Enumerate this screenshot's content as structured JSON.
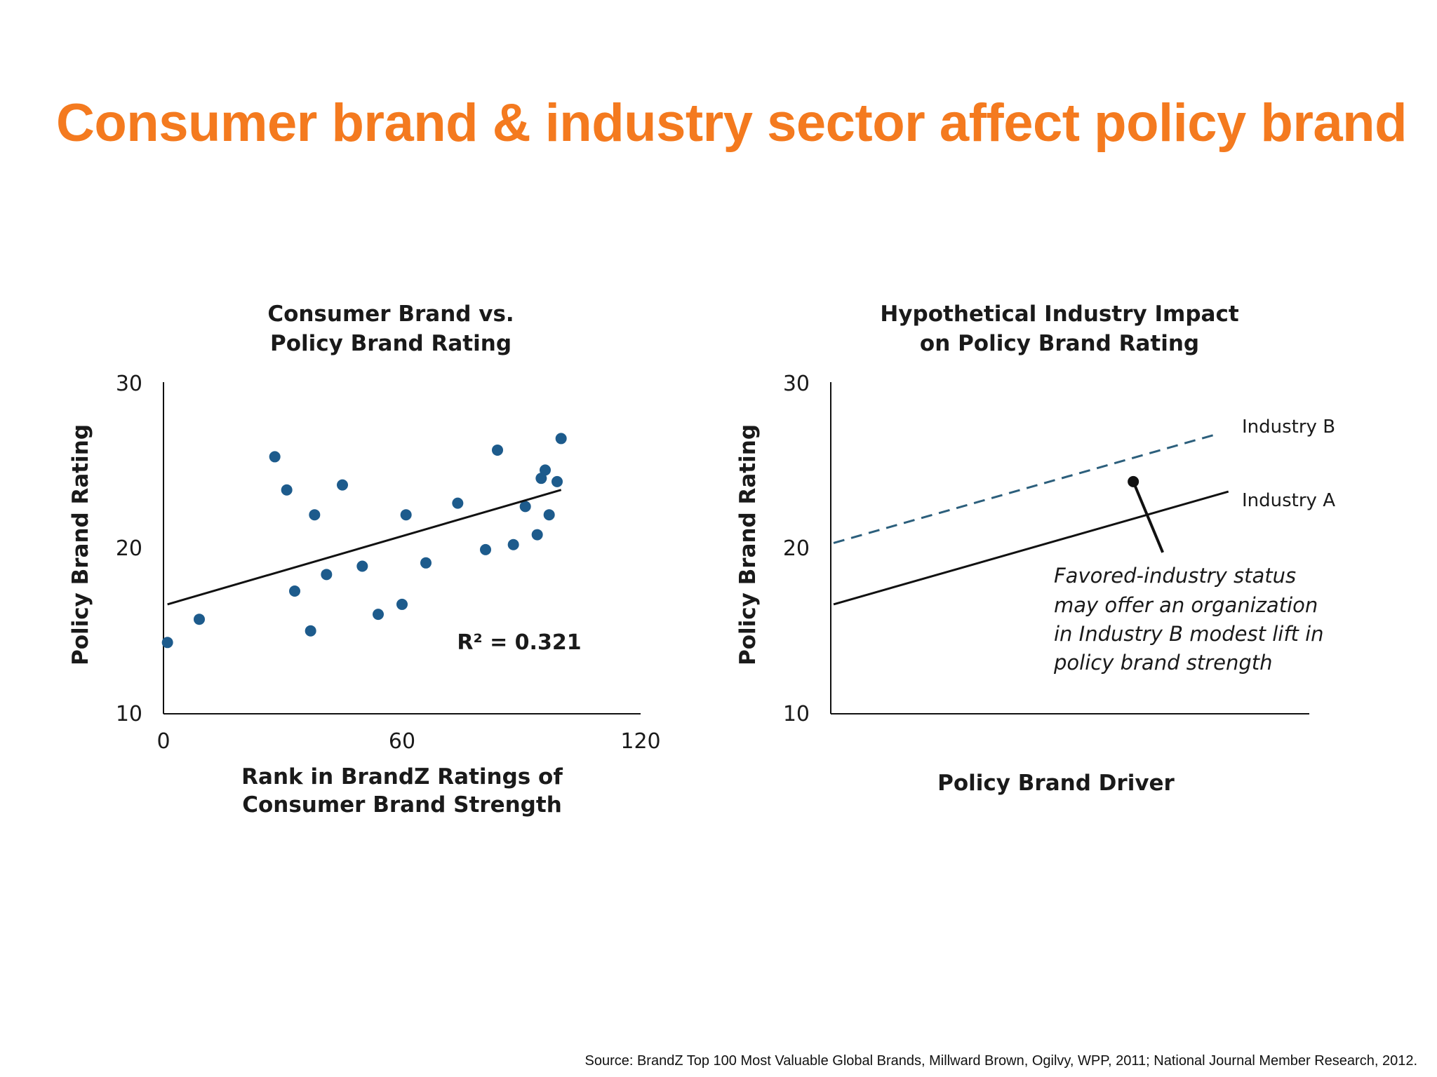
{
  "title": "Consumer brand & industry sector affect policy brand",
  "source": "Source: BrandZ Top 100 Most Valuable Global Brands, Millward Brown, Ogilvy, WPP, 2011; National Journal Member Research, 2012.",
  "colors": {
    "title": "#f47a1f",
    "points": "#1d5b8c",
    "industry_b": "#2c5f7c",
    "line": "#111111"
  },
  "chart_data": [
    {
      "type": "scatter",
      "title": [
        "Consumer Brand vs.",
        "Policy Brand Rating"
      ],
      "xlabel": [
        "Rank in BrandZ Ratings of",
        "Consumer Brand Strength"
      ],
      "ylabel": "Policy Brand Rating",
      "xlim": [
        0,
        120
      ],
      "ylim": [
        10,
        30
      ],
      "xticks": [
        "0",
        "60",
        "120"
      ],
      "yticks": [
        "30",
        "20",
        "10"
      ],
      "points": [
        {
          "x": 1,
          "y": 14.3
        },
        {
          "x": 9,
          "y": 15.7
        },
        {
          "x": 28,
          "y": 25.5
        },
        {
          "x": 31,
          "y": 23.5
        },
        {
          "x": 33,
          "y": 17.4
        },
        {
          "x": 37,
          "y": 15.0
        },
        {
          "x": 38,
          "y": 22.0
        },
        {
          "x": 41,
          "y": 18.4
        },
        {
          "x": 45,
          "y": 23.8
        },
        {
          "x": 50,
          "y": 18.9
        },
        {
          "x": 54,
          "y": 16.0
        },
        {
          "x": 60,
          "y": 16.6
        },
        {
          "x": 61,
          "y": 22.0
        },
        {
          "x": 66,
          "y": 19.1
        },
        {
          "x": 74,
          "y": 22.7
        },
        {
          "x": 81,
          "y": 19.9
        },
        {
          "x": 84,
          "y": 25.9
        },
        {
          "x": 88,
          "y": 20.2
        },
        {
          "x": 91,
          "y": 22.5
        },
        {
          "x": 94,
          "y": 20.8
        },
        {
          "x": 95,
          "y": 24.2
        },
        {
          "x": 96,
          "y": 24.7
        },
        {
          "x": 97,
          "y": 22.0
        },
        {
          "x": 99,
          "y": 24.0
        },
        {
          "x": 100,
          "y": 26.6
        }
      ],
      "trendline": {
        "x": [
          1,
          100
        ],
        "y": [
          16.6,
          23.5
        ]
      },
      "r_squared_label": "R² = 0.321"
    },
    {
      "type": "line",
      "title": [
        "Hypothetical Industry Impact",
        "on Policy Brand Rating"
      ],
      "xlabel": "Policy Brand Driver",
      "ylabel": "Policy Brand Rating",
      "xlim": [
        0,
        100
      ],
      "ylim": [
        10,
        30
      ],
      "yticks": [
        "30",
        "20",
        "10"
      ],
      "series": [
        {
          "name": "Industry B",
          "style": "dashed",
          "x": [
            0,
            81
          ],
          "y": [
            20.3,
            26.9
          ]
        },
        {
          "name": "Industry A",
          "style": "solid",
          "x": [
            0,
            83
          ],
          "y": [
            16.6,
            23.4
          ]
        }
      ],
      "annotation": {
        "lines": [
          "Favored-industry status",
          "may offer an organization",
          "in Industry B modest lift in",
          "policy brand strength"
        ],
        "point": {
          "x": 63,
          "y": 24.0
        }
      }
    }
  ]
}
